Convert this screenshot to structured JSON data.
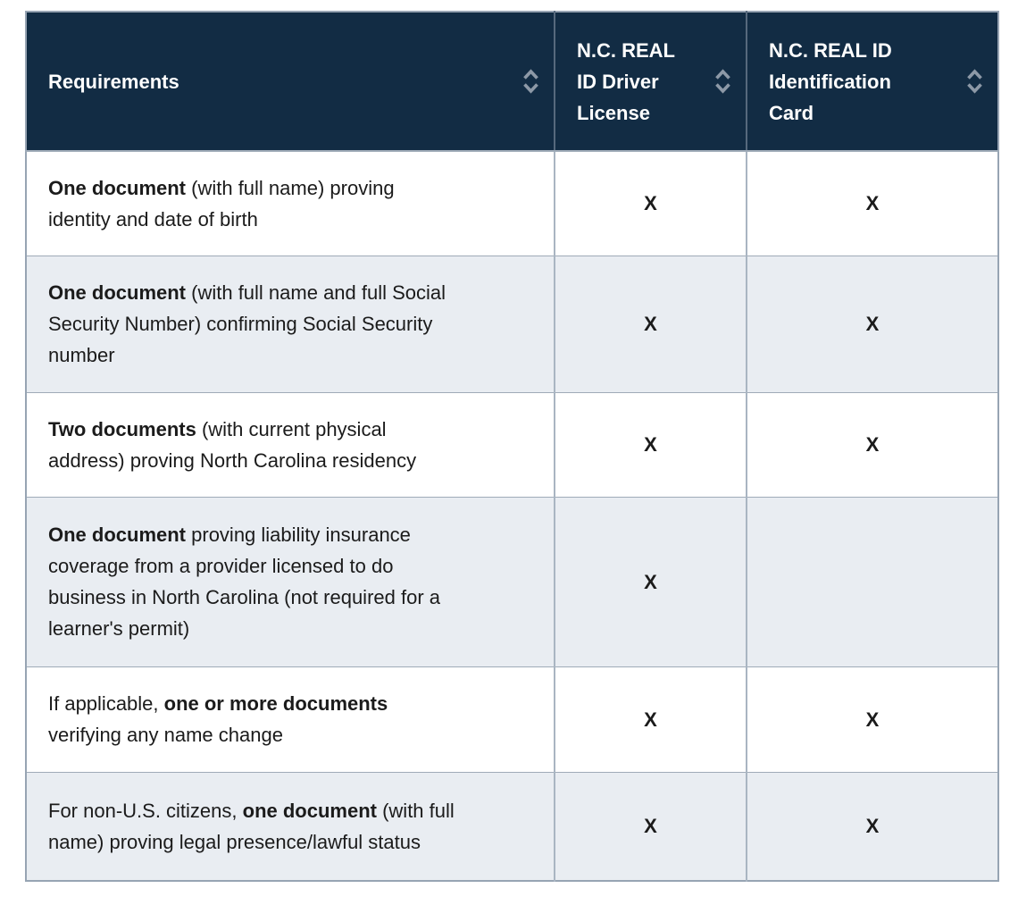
{
  "table": {
    "columns": [
      {
        "label": "Requirements",
        "sort_icon": "up-down-chevrons"
      },
      {
        "label": "N.C. REAL\nID Driver\nLicense",
        "sort_icon": "up-down-chevrons"
      },
      {
        "label": "N.C. REAL ID\nIdentification\nCard",
        "sort_icon": "up-down-chevrons"
      }
    ],
    "rows": [
      {
        "requirement": [
          {
            "text": "One document",
            "bold": true
          },
          {
            "text": " (with full name) proving\nidentity and date of birth",
            "bold": false
          }
        ],
        "driver_license": "X",
        "id_card": "X"
      },
      {
        "requirement": [
          {
            "text": "One document",
            "bold": true
          },
          {
            "text": " (with full name and full Social\nSecurity Number) confirming Social Security\nnumber",
            "bold": false
          }
        ],
        "driver_license": "X",
        "id_card": "X"
      },
      {
        "requirement": [
          {
            "text": "Two documents",
            "bold": true
          },
          {
            "text": " (with current physical\naddress) proving North Carolina residency",
            "bold": false
          }
        ],
        "driver_license": "X",
        "id_card": "X"
      },
      {
        "requirement": [
          {
            "text": "One document",
            "bold": true
          },
          {
            "text": " proving liability insurance\ncoverage from a provider licensed to do\nbusiness in North Carolina (not required for a\nlearner's permit)",
            "bold": false
          }
        ],
        "driver_license": "X",
        "id_card": ""
      },
      {
        "requirement": [
          {
            "text": "If applicable, ",
            "bold": false
          },
          {
            "text": "one or more documents",
            "bold": true
          },
          {
            "text": "\nverifying any name change",
            "bold": false
          }
        ],
        "driver_license": "X",
        "id_card": "X"
      },
      {
        "requirement": [
          {
            "text": "For non-U.S. citizens, ",
            "bold": false
          },
          {
            "text": "one document",
            "bold": true
          },
          {
            "text": " (with full\nname) proving legal presence/lawful status",
            "bold": false
          }
        ],
        "driver_license": "X",
        "id_card": "X"
      }
    ]
  },
  "colors": {
    "header_bg": "#122C44",
    "header_text": "#FFFFFF",
    "row_bg": "#FFFFFF",
    "row_alt_bg": "#E9EDF2",
    "body_text": "#1B1B1B",
    "border_outer": "#97A4B3",
    "divider_light": "#A9B5C2",
    "divider_dark": "#56697D",
    "row_divider": "#9FABB8",
    "sort_icon": "#8D99A7"
  }
}
